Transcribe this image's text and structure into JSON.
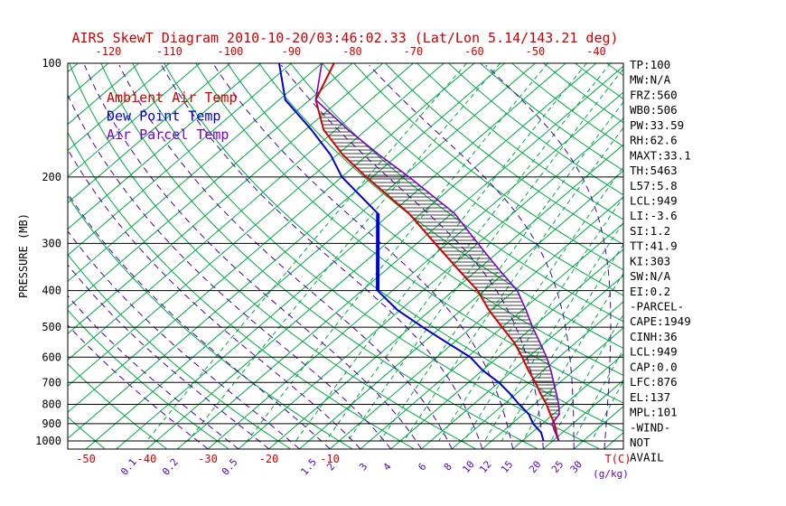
{
  "title": "AIRS SkewT Diagram 2010-10-20/03:46:02.33 (Lat/Lon 5.14/143.21 deg)",
  "colors": {
    "title": "#cc0000",
    "isotherm": "#00a844",
    "dry_adiabat": "#00a844",
    "mixing_ratio_line": "#00a844",
    "moist_adiabat": "#4b00a8",
    "temp_curve": "#d40000",
    "dewpoint_curve": "#0000cc",
    "parcel_curve": "#7a00cc",
    "temp_axis_text": "#d40000",
    "mixr_axis_text": "#5505bb",
    "pressure_axis_text": "#000000",
    "stats_text": "#000000",
    "grid_black": "#000000",
    "hatch": "#111111"
  },
  "legend": [
    {
      "label": "Ambient Air Temp",
      "color_key": "temp_curve"
    },
    {
      "label": "Dew Point Temp",
      "color_key": "dewpoint_curve"
    },
    {
      "label": "Air Parcel Temp",
      "color_key": "parcel_curve"
    }
  ],
  "y_axis": {
    "label": "PRESSURE (MB)",
    "ticks": [
      100,
      200,
      300,
      400,
      500,
      600,
      700,
      800,
      900,
      1000
    ]
  },
  "top_axis": {
    "ticks": [
      -120,
      -110,
      -100,
      -90,
      -80,
      -70,
      -60,
      -50,
      -40
    ]
  },
  "bottom_axis": {
    "temp_ticks": [
      -50,
      -40,
      -30,
      -20,
      -10
    ],
    "temp_unit": "T(C)",
    "mixr_ticks": [
      0.1,
      0.2,
      0.5,
      1.5,
      2,
      3,
      4,
      6,
      8,
      10,
      12,
      15,
      20,
      25,
      30
    ],
    "mixr_unit": "(g/kg)"
  },
  "stats": [
    "TP:100",
    "MW:N/A",
    "FRZ:560",
    "WB0:506",
    "PW:33.59",
    "RH:62.6",
    "MAXT:33.1",
    "TH:5463",
    "L57:5.8",
    "LCL:949",
    "LI:-3.6",
    "SI:1.2",
    "TT:41.9",
    "KI:303",
    "SW:N/A",
    "EI:0.2",
    "-PARCEL-",
    "CAPE:1949",
    "CINH:36",
    "LCL:949",
    "CAP:0.0",
    "LFC:876",
    "EL:137",
    "MPL:101",
    "-WIND-",
    "NOT",
    "AVAIL"
  ],
  "chart_data": {
    "type": "line",
    "title": "AIRS SkewT Diagram 2010-10-20/03:46:02.33 (Lat/Lon 5.14/143.21 deg)",
    "xlabel": "T(C)",
    "x2label": "(g/kg)",
    "ylabel": "PRESSURE (MB)",
    "pressure_axis_mb": [
      100,
      1050
    ],
    "top_axis_temp_range_c": [
      -120,
      -40
    ],
    "pressures": [
      1000,
      950,
      900,
      850,
      800,
      750,
      700,
      650,
      600,
      550,
      500,
      450,
      400,
      350,
      300,
      250,
      200,
      175,
      150,
      125,
      100
    ],
    "series": [
      {
        "name": "Ambient Air Temp",
        "values": [
          26,
          24,
          22,
          19.5,
          17,
          14,
          11,
          7.5,
          4,
          0,
          -5,
          -10.5,
          -16,
          -23.5,
          -32,
          -42,
          -56,
          -64,
          -72,
          -79,
          -83
        ]
      },
      {
        "name": "Dew Point Temp",
        "values": [
          23.5,
          21.5,
          18.5,
          16,
          12.5,
          9,
          5,
          0,
          -4.5,
          -11,
          -18,
          -25.5,
          -32.4,
          -36.6,
          -41.4,
          -47.1,
          -60,
          -66,
          -74,
          -84,
          -92
        ]
      },
      {
        "name": "Air Parcel Temp",
        "values": [
          26,
          23.8,
          21.6,
          21,
          19,
          16.6,
          14,
          11.2,
          8,
          4.2,
          0,
          -4.4,
          -9.5,
          -16.8,
          -25,
          -34.5,
          -49,
          -58,
          -68,
          -79,
          -85
        ]
      }
    ],
    "hatch_between_pressures": [
      876,
      135
    ],
    "background": {
      "isotherms_c": {
        "min": -130,
        "max": 40,
        "step": 5
      },
      "dry_adiabats_c": {
        "min": -60,
        "max": 200,
        "step": 10
      },
      "moist_adiabats_c": {
        "min": -30,
        "max": 40,
        "step": 5
      },
      "mixing_ratio_gkg": [
        0.1,
        0.2,
        0.5,
        1,
        1.5,
        2,
        3,
        4,
        6,
        8,
        10,
        12,
        15,
        20,
        25,
        30
      ]
    }
  }
}
